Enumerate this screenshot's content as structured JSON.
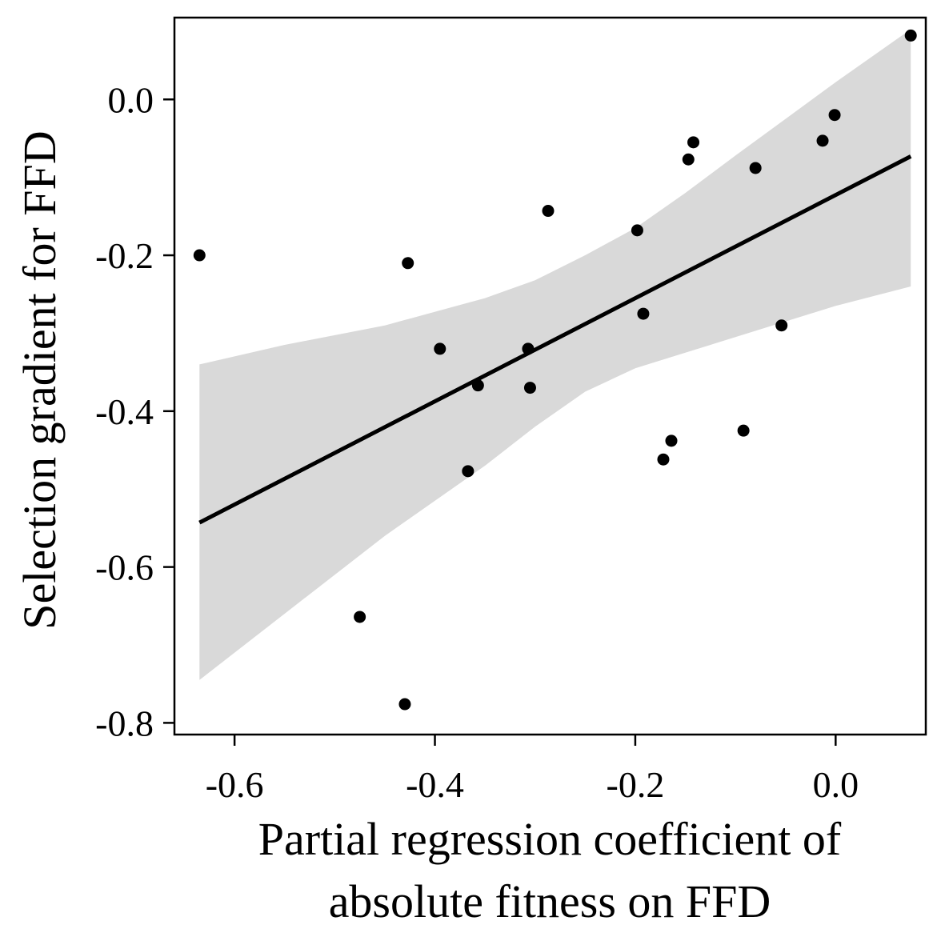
{
  "chart_data": {
    "type": "scatter",
    "xlabel_lines": [
      "Partial regression coefficient of",
      "absolute fitness on FFD"
    ],
    "ylabel": "Selection gradient for FFD",
    "xlim": [
      -0.66,
      0.09
    ],
    "ylim": [
      -0.815,
      0.105
    ],
    "x_ticks": [
      -0.6,
      -0.4,
      -0.2,
      0.0
    ],
    "x_tick_labels": [
      "-0.6",
      "-0.4",
      "-0.2",
      "0.0"
    ],
    "y_ticks": [
      0.0,
      -0.2,
      -0.4,
      -0.6,
      -0.8
    ],
    "y_tick_labels": [
      "0.0",
      "-0.2",
      "-0.4",
      "-0.6",
      "-0.8"
    ],
    "grid": false,
    "points": [
      {
        "x": -0.635,
        "y": -0.2
      },
      {
        "x": -0.475,
        "y": -0.664
      },
      {
        "x": -0.43,
        "y": -0.776
      },
      {
        "x": -0.427,
        "y": -0.21
      },
      {
        "x": -0.395,
        "y": -0.32
      },
      {
        "x": -0.367,
        "y": -0.477
      },
      {
        "x": -0.357,
        "y": -0.367
      },
      {
        "x": -0.307,
        "y": -0.32
      },
      {
        "x": -0.305,
        "y": -0.37
      },
      {
        "x": -0.287,
        "y": -0.143
      },
      {
        "x": -0.198,
        "y": -0.168
      },
      {
        "x": -0.192,
        "y": -0.275
      },
      {
        "x": -0.172,
        "y": -0.462
      },
      {
        "x": -0.164,
        "y": -0.438
      },
      {
        "x": -0.147,
        "y": -0.077
      },
      {
        "x": -0.142,
        "y": -0.055
      },
      {
        "x": -0.092,
        "y": -0.425
      },
      {
        "x": -0.08,
        "y": -0.088
      },
      {
        "x": -0.054,
        "y": -0.29
      },
      {
        "x": -0.013,
        "y": -0.053
      },
      {
        "x": -0.001,
        "y": -0.02
      },
      {
        "x": 0.075,
        "y": 0.082
      }
    ],
    "fit_line": {
      "x": [
        -0.635,
        0.075
      ],
      "y": [
        -0.543,
        -0.073
      ]
    },
    "confidence_band": {
      "x": [
        -0.635,
        -0.55,
        -0.45,
        -0.35,
        -0.3,
        -0.25,
        -0.2,
        -0.15,
        -0.1,
        -0.05,
        0.0,
        0.075
      ],
      "upper": [
        -0.34,
        -0.315,
        -0.29,
        -0.255,
        -0.232,
        -0.2,
        -0.165,
        -0.12,
        -0.072,
        -0.025,
        0.022,
        0.09
      ],
      "lower": [
        -0.745,
        -0.66,
        -0.56,
        -0.47,
        -0.42,
        -0.375,
        -0.345,
        -0.325,
        -0.305,
        -0.285,
        -0.265,
        -0.24
      ]
    },
    "colors": {
      "points": "#000000",
      "line": "#000000",
      "band": "#d9d9d9",
      "axes": "#000000"
    }
  }
}
